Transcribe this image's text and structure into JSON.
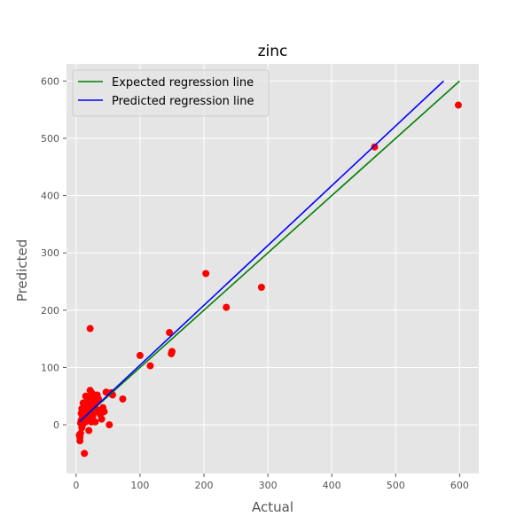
{
  "chart_data": {
    "type": "scatter",
    "title": "zinc",
    "xlabel": "Actual",
    "ylabel": "Predicted",
    "xlim": [
      -15,
      630
    ],
    "ylim": [
      -85,
      630
    ],
    "xticks": [
      0,
      100,
      200,
      300,
      400,
      500,
      600
    ],
    "yticks": [
      0,
      100,
      200,
      300,
      400,
      500,
      600
    ],
    "grid": true,
    "legend_position": "top-left",
    "background_color": "#e5e5e5",
    "series": [
      {
        "name": "Expected regression line",
        "kind": "line",
        "color": "#008000",
        "x": [
          5,
          600
        ],
        "y": [
          5,
          600
        ]
      },
      {
        "name": "Predicted regression line",
        "kind": "line",
        "color": "#0000ff",
        "x": [
          5,
          575
        ],
        "y": [
          5,
          600
        ]
      },
      {
        "kind": "scatter",
        "color": "#ff0000",
        "points": [
          [
            598,
            558
          ],
          [
            467,
            485
          ],
          [
            290,
            240
          ],
          [
            235,
            205
          ],
          [
            203,
            264
          ],
          [
            150,
            128
          ],
          [
            149,
            124
          ],
          [
            146,
            161
          ],
          [
            116,
            103
          ],
          [
            100,
            121
          ],
          [
            73,
            45
          ],
          [
            57,
            52
          ],
          [
            55,
            56
          ],
          [
            52,
            0
          ],
          [
            47,
            57
          ],
          [
            44,
            23
          ],
          [
            42,
            30
          ],
          [
            40,
            10
          ],
          [
            38,
            18
          ],
          [
            36,
            25
          ],
          [
            35,
            45
          ],
          [
            33,
            52
          ],
          [
            31,
            40
          ],
          [
            30,
            5
          ],
          [
            30,
            30
          ],
          [
            29,
            22
          ],
          [
            28,
            47
          ],
          [
            27,
            38
          ],
          [
            26,
            15
          ],
          [
            25,
            55
          ],
          [
            25,
            30
          ],
          [
            24,
            5
          ],
          [
            23,
            42
          ],
          [
            22,
            60
          ],
          [
            22,
            168
          ],
          [
            21,
            20
          ],
          [
            20,
            35
          ],
          [
            20,
            -10
          ],
          [
            19,
            48
          ],
          [
            18,
            12
          ],
          [
            18,
            30
          ],
          [
            17,
            25
          ],
          [
            16,
            40
          ],
          [
            15,
            5
          ],
          [
            15,
            50
          ],
          [
            14,
            20
          ],
          [
            14,
            35
          ],
          [
            13,
            -50
          ],
          [
            12,
            10
          ],
          [
            12,
            28
          ],
          [
            11,
            38
          ],
          [
            10,
            15
          ],
          [
            10,
            0
          ],
          [
            9,
            28
          ],
          [
            9,
            -5
          ],
          [
            8,
            8
          ],
          [
            8,
            20
          ],
          [
            7,
            -15
          ],
          [
            7,
            3
          ],
          [
            6,
            -22
          ],
          [
            6,
            -28
          ],
          [
            5,
            -18
          ]
        ]
      }
    ]
  }
}
